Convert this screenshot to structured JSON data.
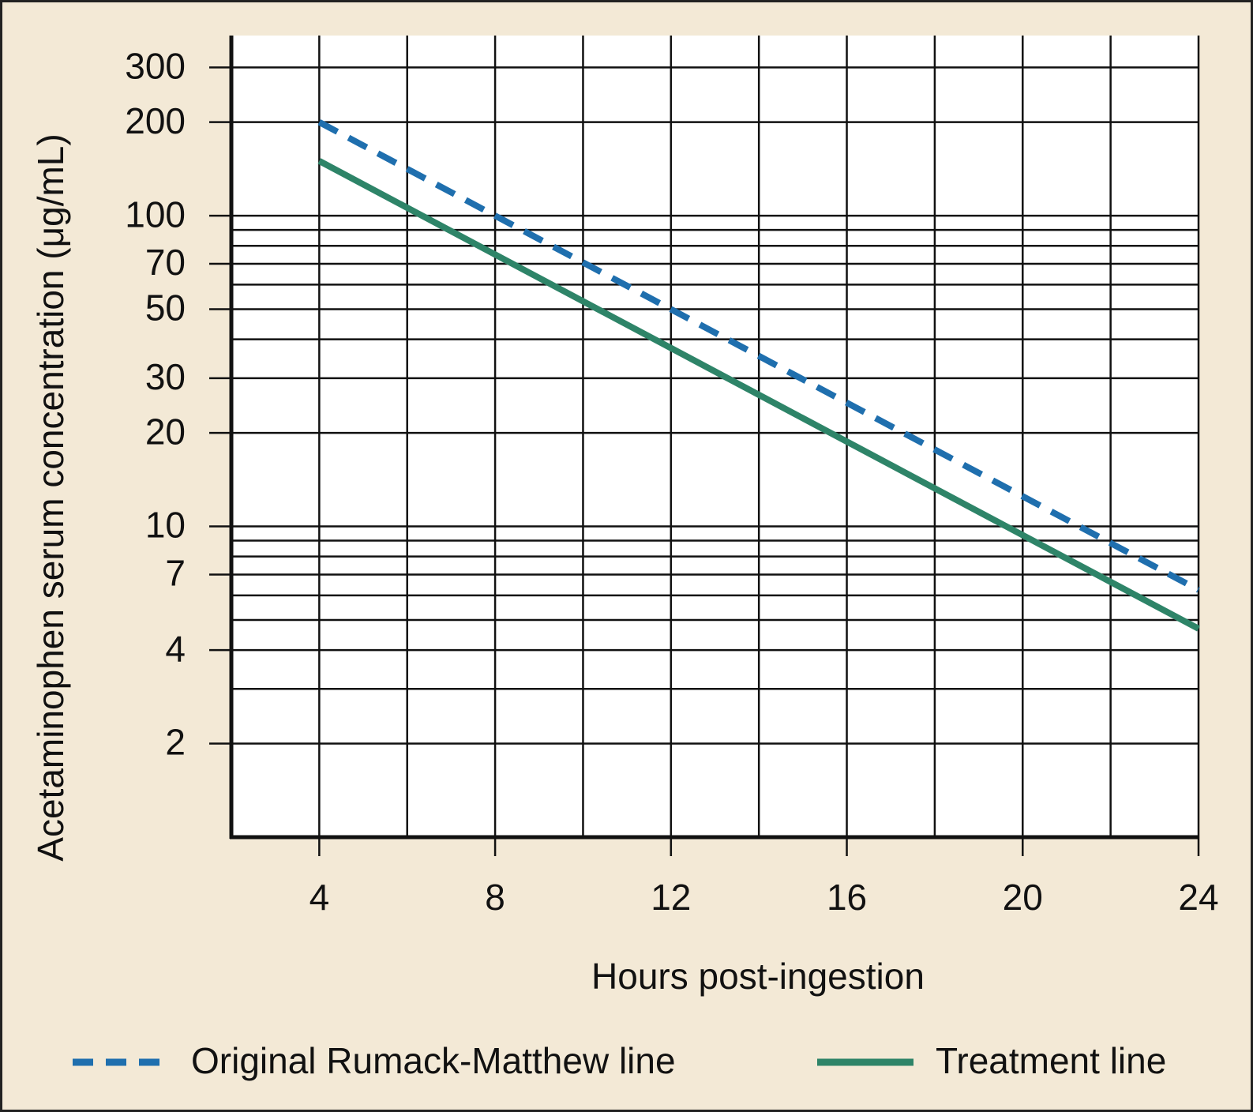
{
  "chart_data": {
    "type": "line",
    "x_label": "Hours post-ingestion",
    "y_label": "Acetaminophen serum concentration (μg/mL)",
    "x": [
      4,
      24
    ],
    "series": [
      {
        "name": "Original Rumack-Matthew line",
        "color": "#1f6fae",
        "style": "dashed",
        "values": [
          200,
          6.25
        ]
      },
      {
        "name": "Treatment line",
        "color": "#2e8468",
        "style": "solid",
        "values": [
          150,
          4.6875
        ]
      }
    ],
    "xlim": [
      2,
      24
    ],
    "xticks": [
      4,
      8,
      12,
      16,
      20,
      24
    ],
    "minor_xticks": [
      6,
      10,
      14,
      18,
      22
    ],
    "ylim": [
      1,
      380
    ],
    "log_y": true,
    "yticks": [
      2,
      4,
      7,
      10,
      20,
      30,
      50,
      70,
      100,
      200,
      300
    ],
    "minor_yticks": [
      3,
      5,
      6,
      8,
      9,
      40,
      60,
      80,
      90
    ],
    "grid": true
  }
}
